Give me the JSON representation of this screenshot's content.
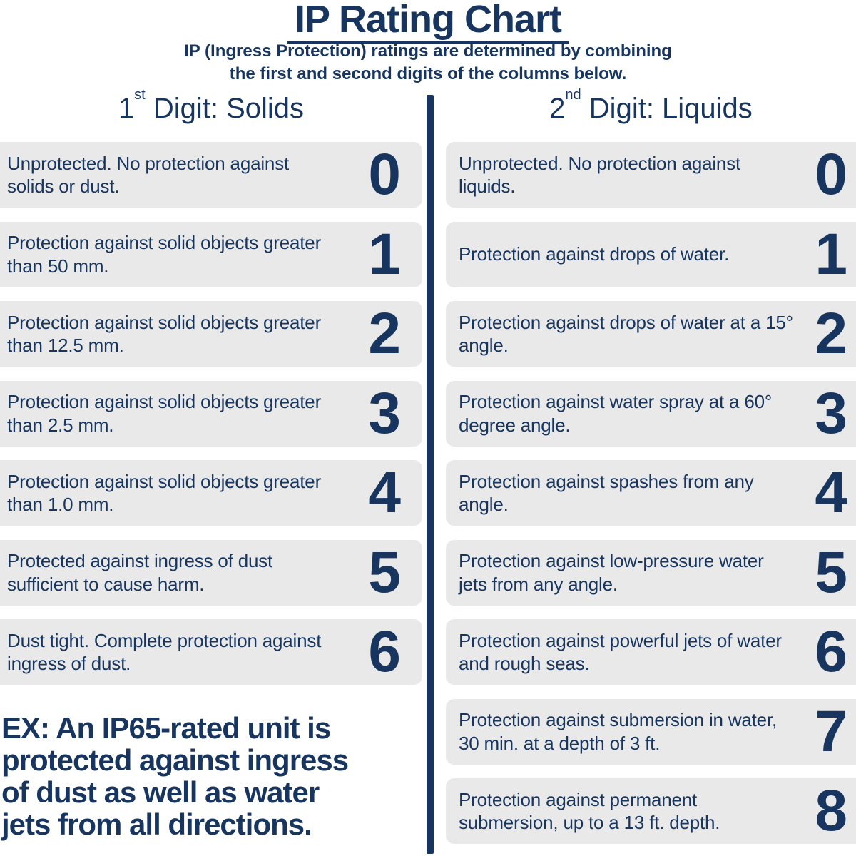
{
  "header": {
    "title": "IP Rating Chart",
    "subtitle_lines": [
      "IP (Ingress Protection) ratings are determined by combining",
      "the first and second digits of the columns below."
    ]
  },
  "columns": {
    "solids": {
      "heading": {
        "number": "1",
        "ordinal": "st",
        "label": "Digit: Solids"
      },
      "rows": [
        {
          "digit": "0",
          "description": "Unprotected. No protection against solids or dust."
        },
        {
          "digit": "1",
          "description": "Protection against solid objects greater than 50 mm."
        },
        {
          "digit": "2",
          "description": "Protection against solid objects greater than 12.5 mm."
        },
        {
          "digit": "3",
          "description": "Protection against solid objects greater than 2.5 mm."
        },
        {
          "digit": "4",
          "description": "Protection against solid objects greater than 1.0 mm."
        },
        {
          "digit": "5",
          "description": "Protected against ingress of dust sufficient to cause harm."
        },
        {
          "digit": "6",
          "description": "Dust tight. Complete protection against ingress of dust."
        }
      ]
    },
    "liquids": {
      "heading": {
        "number": "2",
        "ordinal": "nd",
        "label": "Digit: Liquids"
      },
      "rows": [
        {
          "digit": "0",
          "description": "Unprotected. No protection against liquids."
        },
        {
          "digit": "1",
          "description": "Protection against drops of water."
        },
        {
          "digit": "2",
          "description": "Protection against drops of water at a 15° angle."
        },
        {
          "digit": "3",
          "description": "Protection against water spray at a 60° degree angle."
        },
        {
          "digit": "4",
          "description": "Protection against spashes from any angle."
        },
        {
          "digit": "5",
          "description": "Protection against low-pressure water jets from any angle."
        },
        {
          "digit": "6",
          "description": "Protection against powerful jets of water and rough seas."
        },
        {
          "digit": "7",
          "description": "Protection against submersion in water, 30 min. at a depth of 3 ft."
        },
        {
          "digit": "8",
          "description": "Protection against permanent submersion, up to a 13 ft. depth."
        }
      ]
    }
  },
  "example": {
    "lines": [
      "EX: An IP65-rated unit is",
      "protected against ingress",
      "of dust as well as water",
      "jets from all directions."
    ]
  },
  "colors": {
    "navy": "#17355E",
    "card_bg": "#E9E9E9",
    "background": "#FFFFFF"
  }
}
